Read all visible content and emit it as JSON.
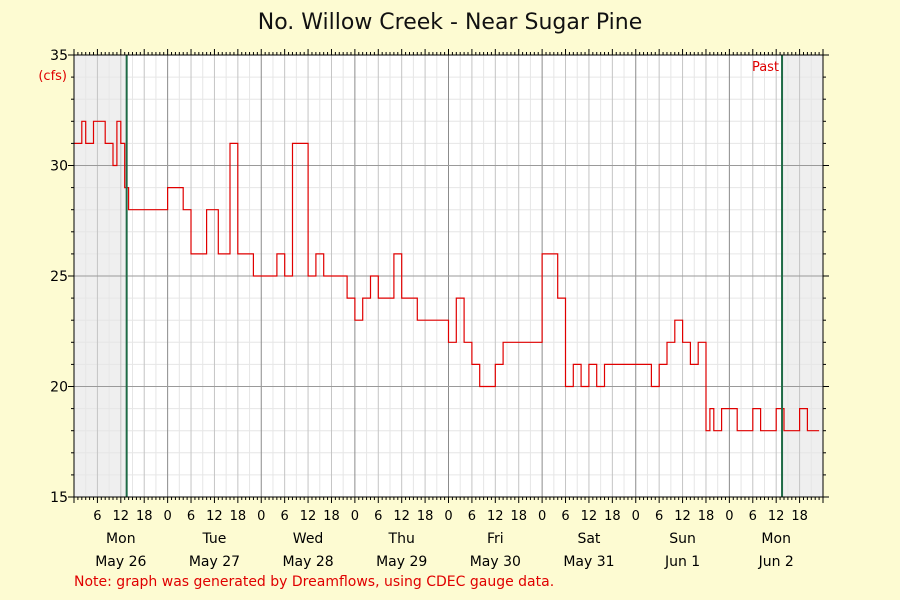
{
  "chart_data": {
    "type": "line",
    "title": "No. Willow Creek - Near Sugar Pine",
    "ylabel": "(cfs)",
    "ylim": [
      15,
      35
    ],
    "yticks": [
      15,
      20,
      25,
      30,
      35
    ],
    "x_start": "May 26 00:00",
    "x_end": "Jun 2 24:00",
    "x_hour_ticks": [
      6,
      12,
      18,
      0,
      6,
      12,
      18,
      0,
      6,
      12,
      18,
      0,
      6,
      12,
      18,
      0,
      6,
      12,
      18,
      0,
      6,
      12,
      18,
      0,
      6,
      12,
      18,
      0,
      6,
      12,
      18
    ],
    "days": [
      {
        "weekday": "Mon",
        "date": "May 26"
      },
      {
        "weekday": "Tue",
        "date": "May 27"
      },
      {
        "weekday": "Wed",
        "date": "May 28"
      },
      {
        "weekday": "Thu",
        "date": "May 29"
      },
      {
        "weekday": "Fri",
        "date": "May 30"
      },
      {
        "weekday": "Sat",
        "date": "May 31"
      },
      {
        "weekday": "Sun",
        "date": "Jun 1"
      },
      {
        "weekday": "Mon",
        "date": "Jun 2"
      }
    ],
    "shaded_regions": [
      {
        "from_hour": 0,
        "to_hour": 13.5
      },
      {
        "from_hour": 181.5,
        "to_hour": 192
      }
    ],
    "past_marker_label": "Past",
    "series": [
      {
        "color": "#e00000",
        "hours": [
          0,
          2,
          3,
          5,
          8,
          10,
          11,
          12,
          13,
          14,
          16,
          18,
          24,
          28,
          30,
          34,
          37,
          40,
          42,
          44,
          46,
          48,
          50,
          52,
          53,
          54,
          56,
          60,
          62,
          64,
          66,
          70,
          72,
          74,
          76,
          78,
          80,
          82,
          84,
          88,
          92,
          96,
          97,
          98,
          100,
          102,
          104,
          106,
          108,
          110,
          112,
          114,
          118,
          120,
          124,
          126,
          128,
          130,
          132,
          134,
          136,
          140,
          144,
          148,
          150,
          152,
          154,
          156,
          158,
          160,
          162,
          163,
          164,
          166,
          168,
          170,
          174,
          176,
          178,
          180,
          182,
          186,
          188,
          190
        ],
        "values": [
          31,
          32,
          31,
          32,
          31,
          30,
          32,
          31,
          29,
          28,
          28,
          28,
          29,
          28,
          26,
          28,
          26,
          31,
          26,
          26,
          25,
          25,
          25,
          26,
          26,
          25,
          31,
          25,
          26,
          25,
          25,
          24,
          23,
          24,
          25,
          24,
          24,
          26,
          24,
          23,
          23,
          22,
          22,
          24,
          22,
          21,
          20,
          20,
          21,
          22,
          22,
          22,
          22,
          26,
          24,
          20,
          21,
          20,
          21,
          20,
          21,
          21,
          21,
          20,
          21,
          22,
          23,
          22,
          21,
          22,
          18,
          19,
          18,
          19,
          19,
          18,
          19,
          18,
          18,
          19,
          18,
          19,
          18,
          18
        ]
      }
    ]
  },
  "note": "Note: graph was generated by Dreamflows, using CDEC gauge data."
}
